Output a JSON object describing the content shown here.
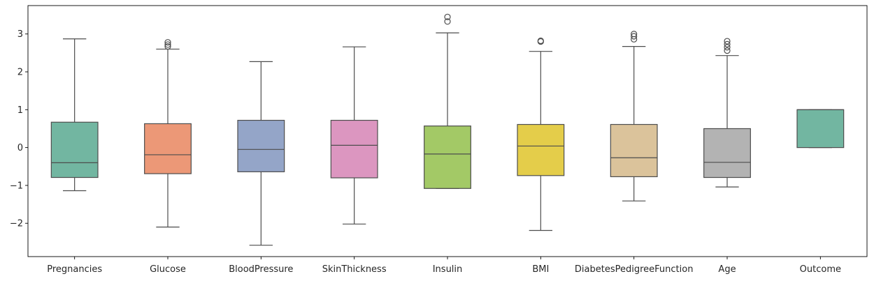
{
  "chart_data": {
    "type": "box",
    "title": "",
    "xlabel": "",
    "ylabel": "",
    "ylim": [
      -2.88,
      3.75
    ],
    "yticks": [
      -2,
      -1,
      0,
      1,
      2,
      3
    ],
    "ytick_labels": [
      "−2",
      "−1",
      "0",
      "1",
      "2",
      "3"
    ],
    "grid": false,
    "categories": [
      "Pregnancies",
      "Glucose",
      "BloodPressure",
      "SkinThickness",
      "Insulin",
      "BMI",
      "DiabetesPedigreeFunction",
      "Age",
      "Outcome"
    ],
    "boxes": [
      {
        "whisker_low": -1.14,
        "q1": -0.79,
        "median": -0.4,
        "q3": 0.67,
        "whisker_high": 2.87,
        "outliers": [],
        "color": "#72b6a1"
      },
      {
        "whisker_low": -2.1,
        "q1": -0.69,
        "median": -0.19,
        "q3": 0.63,
        "whisker_high": 2.6,
        "outliers": [
          2.67,
          2.72,
          2.78
        ],
        "color": "#ec9877"
      },
      {
        "whisker_low": -2.58,
        "q1": -0.64,
        "median": -0.05,
        "q3": 0.72,
        "whisker_high": 2.27,
        "outliers": [],
        "color": "#94a5c8"
      },
      {
        "whisker_low": -2.02,
        "q1": -0.8,
        "median": 0.06,
        "q3": 0.72,
        "whisker_high": 2.66,
        "outliers": [],
        "color": "#dc96c0"
      },
      {
        "whisker_low": -1.08,
        "q1": -1.08,
        "median": -0.17,
        "q3": 0.57,
        "whisker_high": 3.03,
        "outliers": [
          3.33,
          3.45
        ],
        "color": "#a3c966"
      },
      {
        "whisker_low": -2.19,
        "q1": -0.74,
        "median": 0.04,
        "q3": 0.61,
        "whisker_high": 2.54,
        "outliers": [
          2.8,
          2.82
        ],
        "color": "#e4cd4a"
      },
      {
        "whisker_low": -1.41,
        "q1": -0.77,
        "median": -0.27,
        "q3": 0.61,
        "whisker_high": 2.67,
        "outliers": [
          2.86,
          2.94,
          3.0
        ],
        "color": "#dbc39b"
      },
      {
        "whisker_low": -1.04,
        "q1": -0.79,
        "median": -0.39,
        "q3": 0.5,
        "whisker_high": 2.43,
        "outliers": [
          2.56,
          2.65,
          2.73,
          2.81
        ],
        "color": "#b3b3b3"
      },
      {
        "whisker_low": 0.0,
        "q1": 0.0,
        "median": 1.0,
        "q3": 1.0,
        "whisker_high": 1.0,
        "outliers": [],
        "color": "#72b6a1"
      }
    ],
    "line_color": "#4d4d4d"
  }
}
